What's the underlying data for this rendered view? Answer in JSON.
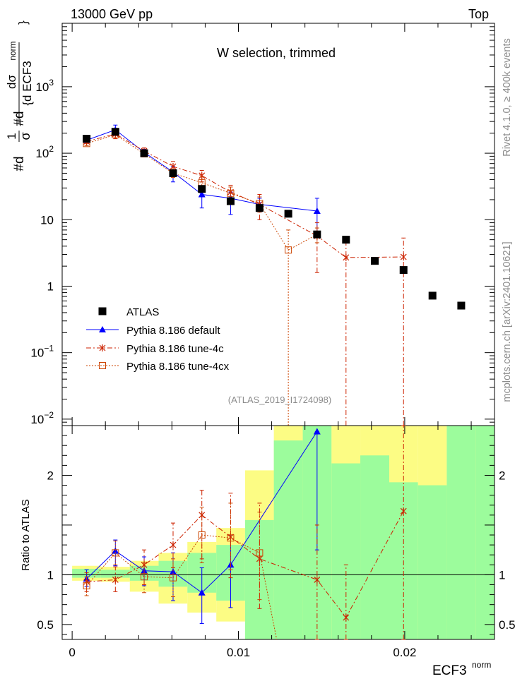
{
  "header": {
    "left": "13000 GeV pp",
    "right": "Top"
  },
  "side_labels": {
    "rivet": "Rivet 4.1.0, ≥ 400k events",
    "mcplots": "mcplots.cern.ch [arXiv:2401.10621]"
  },
  "chart_data": [
    {
      "type": "scatter",
      "title": "W selection, trimmed",
      "analysis": "(ATLAS_2019_I1724098)",
      "xlabel": "ECF3",
      "xlabel_sup": "norm",
      "ylabel": "#d1/σ #d dσ / {d ECF3 norm}",
      "yscale": "log",
      "xlim": [
        -0.0006,
        0.0254
      ],
      "ylim": [
        0.008,
        9000
      ],
      "x_ticks": [
        0,
        0.01,
        0.02
      ],
      "x_tick_labels": [
        "0",
        "0.01",
        "0.02"
      ],
      "y_ticks": [
        0.01,
        0.1,
        1,
        10,
        100,
        1000
      ],
      "legend_position": "middle-left",
      "series": [
        {
          "name": "ATLAS",
          "color": "#000000",
          "marker": "square",
          "x": [
            0.00087,
            0.0026,
            0.00433,
            0.00607,
            0.0078,
            0.00953,
            0.01127,
            0.013,
            0.01473,
            0.01647,
            0.0182,
            0.01993,
            0.02167,
            0.0234
          ],
          "y": [
            165,
            210,
            100,
            50,
            29,
            19,
            15,
            12.3,
            6.0,
            5.0,
            2.4,
            1.75,
            0.72,
            0.51
          ]
        },
        {
          "name": "Pythia 8.186 default",
          "color": "#0000ff",
          "marker": "triangle",
          "linestyle": "solid",
          "x": [
            0.00087,
            0.0026,
            0.00433,
            0.00607,
            0.0078,
            0.00953,
            0.01127,
            0.01473
          ],
          "y": [
            157,
            225,
            103,
            52,
            24,
            21,
            17,
            13.5
          ],
          "y_low": [
            145,
            185,
            90,
            37,
            15,
            12,
            13,
            5.8
          ],
          "y_high": [
            170,
            265,
            115,
            63,
            31,
            26,
            21,
            21
          ]
        },
        {
          "name": "Pythia 8.186 tune-4c",
          "color": "#cc2200",
          "marker": "star",
          "linestyle": "dashdot",
          "x": [
            0.00087,
            0.0026,
            0.00433,
            0.00607,
            0.0078,
            0.00953,
            0.01127,
            0.01473,
            0.01647,
            0.01993
          ],
          "y": [
            150,
            195,
            108,
            63,
            46,
            26,
            17,
            5.7,
            2.7,
            2.75
          ],
          "y_low": [
            140,
            165,
            95,
            52,
            37,
            18,
            10,
            1.6,
            0.008,
            0.008
          ],
          "y_high": [
            162,
            230,
            120,
            75,
            55,
            33,
            24,
            9,
            5.0,
            5.3
          ]
        },
        {
          "name": "Pythia 8.186 tune-4cx",
          "color": "#cc4400",
          "marker": "open-square",
          "linestyle": "dotted",
          "x": [
            0.00087,
            0.0026,
            0.00433,
            0.00607,
            0.0078,
            0.00953,
            0.01127,
            0.013,
            0.01473
          ],
          "y": [
            140,
            190,
            98,
            50,
            36,
            25,
            17.5,
            3.5,
            6.0
          ],
          "y_low": [
            130,
            170,
            88,
            43,
            27,
            19,
            13,
            0.008,
            4.5
          ],
          "y_high": [
            150,
            210,
            108,
            57,
            44,
            31,
            22,
            7,
            7.5
          ]
        }
      ]
    },
    {
      "type": "scatter",
      "ylabel": "Ratio to ATLAS",
      "ylim": [
        0.35,
        2.5
      ],
      "y_ticks": [
        0.5,
        1,
        2
      ],
      "y_tick_labels": [
        "0.5",
        "1",
        "2"
      ],
      "bands": {
        "edges": [
          0,
          0.00173,
          0.00347,
          0.0052,
          0.00693,
          0.00867,
          0.0104,
          0.01213,
          0.01387,
          0.0156,
          0.01733,
          0.01907,
          0.0208,
          0.02253,
          0.02427,
          0.026
        ],
        "inner_color": "#9cfc9c",
        "outer_color": "#fcfc84",
        "inner_low": [
          0.97,
          0.97,
          0.94,
          0.88,
          0.82,
          0.74,
          0.35,
          0.35,
          0.35,
          0.35,
          0.35,
          0.35,
          0.35,
          0.35,
          0.35
        ],
        "inner_high": [
          1.06,
          1.05,
          1.09,
          1.14,
          1.22,
          1.3,
          1.55,
          2.35,
          2.5,
          2.12,
          2.2,
          1.93,
          1.9,
          2.5,
          2.5
        ],
        "outer_low": [
          0.94,
          0.93,
          0.83,
          0.71,
          0.62,
          0.53,
          0.35,
          0.35,
          0.35,
          0.35,
          0.35,
          0.35,
          0.35,
          0.35,
          0.35
        ],
        "outer_high": [
          1.09,
          1.08,
          1.14,
          1.22,
          1.33,
          1.47,
          2.05,
          2.5,
          2.5,
          2.5,
          2.5,
          2.5,
          2.5,
          2.5,
          2.5
        ]
      },
      "series": [
        {
          "name": "Pythia 8.186 default",
          "x": [
            0.00087,
            0.0026,
            0.00433,
            0.00607,
            0.0078,
            0.00953,
            0.01473
          ],
          "y": [
            0.96,
            1.24,
            1.04,
            1.03,
            0.82,
            1.1,
            2.44
          ],
          "y_low": [
            0.88,
            1.09,
            0.89,
            0.74,
            0.51,
            0.67,
            1.25
          ],
          "y_high": [
            1.05,
            1.35,
            1.18,
            1.22,
            1.07,
            1.4,
            2.44
          ]
        },
        {
          "name": "Pythia 8.186 tune-4c",
          "x": [
            0.00087,
            0.0026,
            0.00433,
            0.00607,
            0.0078,
            0.00953,
            0.01127,
            0.01473,
            0.01647,
            0.01993
          ],
          "y": [
            0.93,
            0.95,
            1.1,
            1.3,
            1.6,
            1.38,
            1.16,
            0.95,
            0.57,
            1.64
          ],
          "y_low": [
            0.83,
            0.83,
            0.9,
            1.07,
            1.16,
            0.97,
            0.66,
            0.35,
            0.35,
            0.35
          ],
          "y_high": [
            1.02,
            1.08,
            1.25,
            1.52,
            1.85,
            1.82,
            1.72,
            1.5,
            1.1,
            2.5
          ]
        },
        {
          "name": "Pythia 8.186 tune-4cx",
          "x": [
            0.00087,
            0.0026,
            0.00433,
            0.00607,
            0.0078,
            0.00953,
            0.01127
          ],
          "y": [
            0.89,
            1.22,
            0.98,
            0.97,
            1.4,
            1.37,
            1.22
          ],
          "y_low": [
            0.79,
            1.1,
            0.82,
            0.78,
            1.12,
            1.05,
            0.75
          ],
          "y_high": [
            0.98,
            1.34,
            1.12,
            1.16,
            1.68,
            1.72,
            1.63
          ]
        }
      ]
    }
  ]
}
